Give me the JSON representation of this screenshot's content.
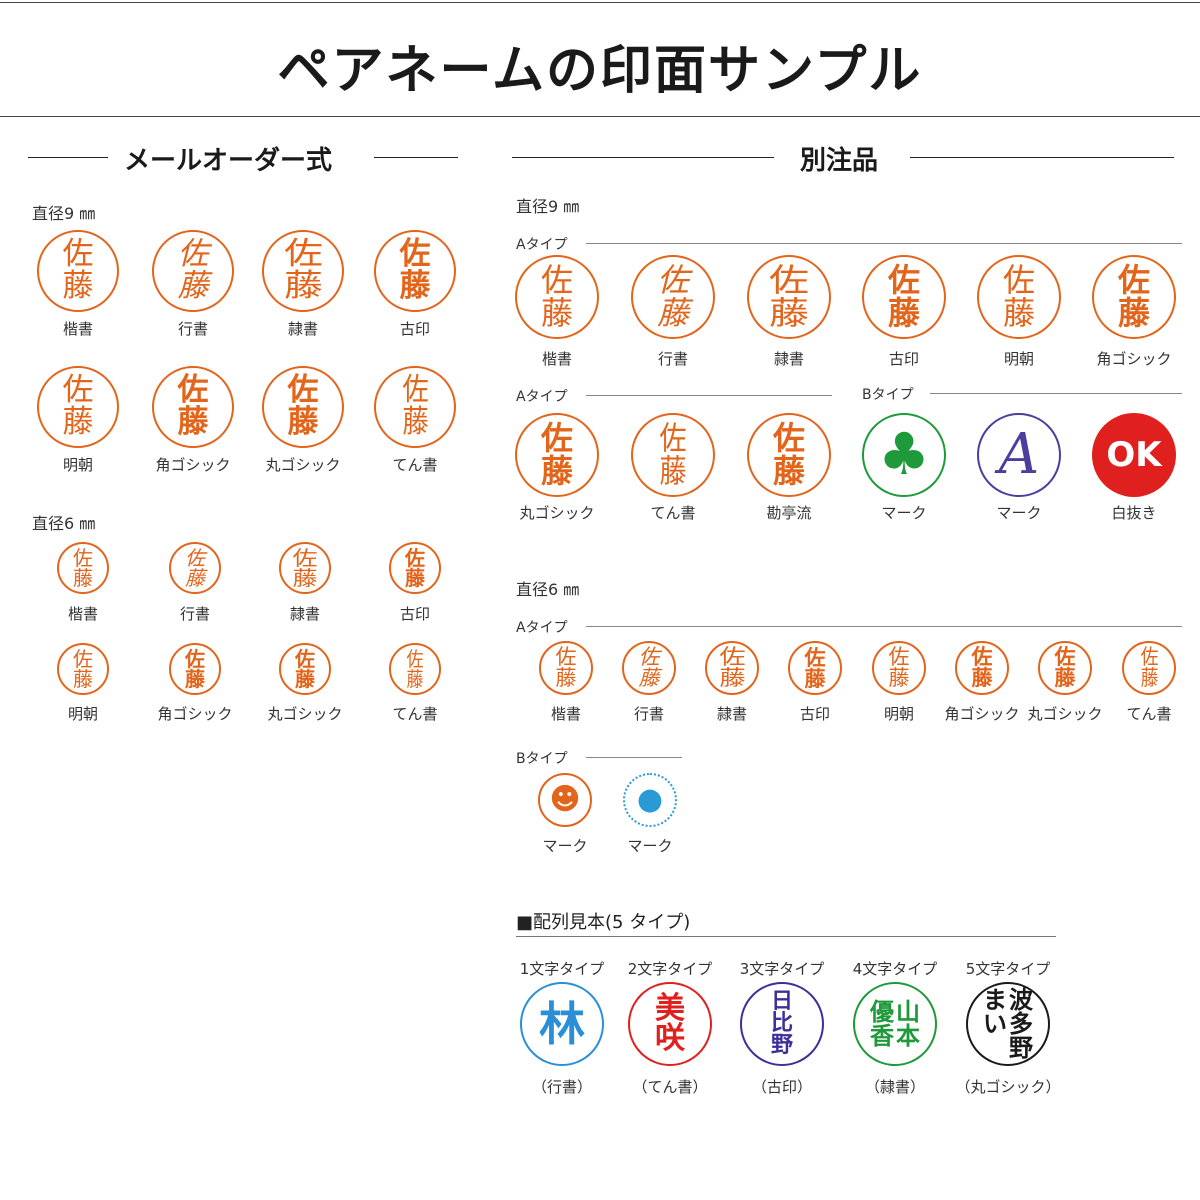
{
  "header": {
    "title": "ペアネームの印面サンプル"
  },
  "left": {
    "section_title": "メールオーダー式",
    "d9_label": "直径9 ㎜",
    "d6_label": "直径6 ㎜",
    "d9": [
      {
        "top": "佐",
        "bottom": "藤",
        "caption": "楷書"
      },
      {
        "top": "佐",
        "bottom": "藤",
        "caption": "行書"
      },
      {
        "top": "佐",
        "bottom": "藤",
        "caption": "隷書"
      },
      {
        "top": "佐",
        "bottom": "藤",
        "caption": "古印"
      },
      {
        "top": "佐",
        "bottom": "藤",
        "caption": "明朝"
      },
      {
        "top": "佐",
        "bottom": "藤",
        "caption": "角ゴシック"
      },
      {
        "top": "佐",
        "bottom": "藤",
        "caption": "丸ゴシック"
      },
      {
        "top": "佐",
        "bottom": "藤",
        "caption": "てん書"
      }
    ],
    "d6": [
      {
        "top": "佐",
        "bottom": "藤",
        "caption": "楷書"
      },
      {
        "top": "佐",
        "bottom": "藤",
        "caption": "行書"
      },
      {
        "top": "佐",
        "bottom": "藤",
        "caption": "隷書"
      },
      {
        "top": "佐",
        "bottom": "藤",
        "caption": "古印"
      },
      {
        "top": "佐",
        "bottom": "藤",
        "caption": "明朝"
      },
      {
        "top": "佐",
        "bottom": "藤",
        "caption": "角ゴシック"
      },
      {
        "top": "佐",
        "bottom": "藤",
        "caption": "丸ゴシック"
      },
      {
        "top": "佐",
        "bottom": "藤",
        "caption": "てん書"
      }
    ]
  },
  "right": {
    "section_title": "別注品",
    "d9_label": "直径9 ㎜",
    "d6_label": "直径6 ㎜",
    "type_a": "Aタイプ",
    "type_b": "Bタイプ",
    "d9_row1": [
      {
        "top": "佐",
        "bottom": "藤",
        "caption": "楷書"
      },
      {
        "top": "佐",
        "bottom": "藤",
        "caption": "行書"
      },
      {
        "top": "佐",
        "bottom": "藤",
        "caption": "隷書"
      },
      {
        "top": "佐",
        "bottom": "藤",
        "caption": "古印"
      },
      {
        "top": "佐",
        "bottom": "藤",
        "caption": "明朝"
      },
      {
        "top": "佐",
        "bottom": "藤",
        "caption": "角ゴシック"
      }
    ],
    "d9_row2a": [
      {
        "top": "佐",
        "bottom": "藤",
        "caption": "丸ゴシック"
      },
      {
        "top": "佐",
        "bottom": "藤",
        "caption": "てん書"
      },
      {
        "top": "佐",
        "bottom": "藤",
        "caption": "勘亭流"
      }
    ],
    "d9_row2b": [
      {
        "mark": "♣",
        "caption": "マーク",
        "color": "#1f9a3a"
      },
      {
        "mark": "A",
        "caption": "マーク",
        "color": "#4a3f9f"
      },
      {
        "mark": "OK",
        "caption": "白抜き",
        "color": "#e0201e"
      }
    ],
    "d6_row": [
      {
        "top": "佐",
        "bottom": "藤",
        "caption": "楷書"
      },
      {
        "top": "佐",
        "bottom": "藤",
        "caption": "行書"
      },
      {
        "top": "佐",
        "bottom": "藤",
        "caption": "隷書"
      },
      {
        "top": "佐",
        "bottom": "藤",
        "caption": "古印"
      },
      {
        "top": "佐",
        "bottom": "藤",
        "caption": "明朝"
      },
      {
        "top": "佐",
        "bottom": "藤",
        "caption": "角ゴシック"
      },
      {
        "top": "佐",
        "bottom": "藤",
        "caption": "丸ゴシック"
      },
      {
        "top": "佐",
        "bottom": "藤",
        "caption": "てん書"
      }
    ],
    "d6_b": [
      {
        "caption": "マーク",
        "color": "#e2651b"
      },
      {
        "caption": "マーク",
        "color": "#2a9ad6"
      }
    ]
  },
  "layout_samples": {
    "heading": "■配列見本(5 タイプ)",
    "items": [
      {
        "type": "1文字タイプ",
        "chars": [
          "林"
        ],
        "caption": "（行書）",
        "color": "#2a8fd6"
      },
      {
        "type": "2文字タイプ",
        "chars": [
          "美",
          "咲"
        ],
        "caption": "（てん書）",
        "color": "#e0201e"
      },
      {
        "type": "3文字タイプ",
        "chars": [
          "日",
          "比",
          "野"
        ],
        "caption": "（古印）",
        "color": "#3b2f9a"
      },
      {
        "type": "4文字タイプ",
        "chars": [
          "山",
          "本",
          "優",
          "香"
        ],
        "caption": "（隷書）",
        "color": "#1f9a3a"
      },
      {
        "type": "5文字タイプ",
        "chars": [
          "波",
          "多",
          "野",
          "ま",
          "い"
        ],
        "caption": "（丸ゴシック）",
        "color": "#1a1a1a"
      }
    ]
  }
}
